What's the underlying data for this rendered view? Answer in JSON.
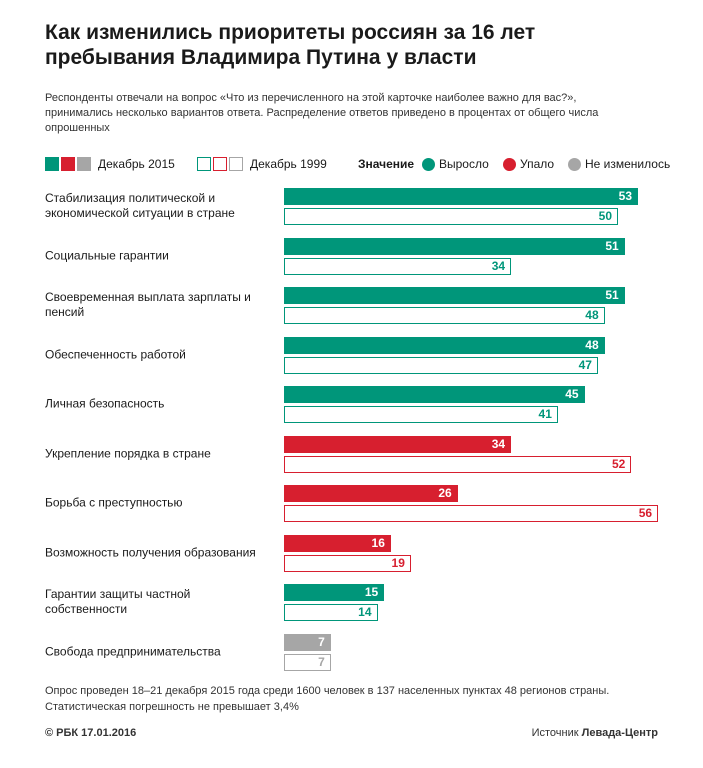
{
  "chart_data": {
    "type": "bar",
    "orientation": "horizontal",
    "title": "Как изменились приоритеты россиян за 16 лет пребывания Владимира Путина у власти",
    "subtitle": "Респонденты отвечали на вопрос «Что из перечисленного на этой карточке наиболее важно для вас?», принимались несколько вариантов ответа. Распределение ответов приведено в процентах от общего числа опрошенных",
    "categories": [
      "Стабилизация политической и экономической ситуации в стране",
      "Социальные гарантии",
      "Своевременная выплата зарплаты и пенсий",
      "Обеспеченность работой",
      "Личная безопасность",
      "Укрепление порядка в стране",
      "Борьба с преступностью",
      "Возможность получения образования",
      "Гарантии защиты частной собственности",
      "Свобода предпринимательства"
    ],
    "series": [
      {
        "name": "Декабрь 2015",
        "style": "filled",
        "values": [
          53,
          51,
          51,
          48,
          45,
          34,
          26,
          16,
          15,
          7
        ]
      },
      {
        "name": "Декабрь 1999",
        "style": "outline",
        "values": [
          50,
          34,
          48,
          47,
          41,
          52,
          56,
          19,
          14,
          7
        ]
      }
    ],
    "status_legend": {
      "title": "Значение",
      "items": [
        {
          "label": "Выросло",
          "color": "#00967a"
        },
        {
          "label": "Упало",
          "color": "#d71f2f"
        },
        {
          "label": "Не изменилось",
          "color": "#a6a6a6"
        }
      ]
    },
    "status": [
      0,
      0,
      0,
      0,
      0,
      1,
      1,
      1,
      0,
      2
    ],
    "footnote": "Опрос проведен 18–21 декабря 2015 года среди 1600 человек в 137 населенных пунктах 48 регионов страны. Статистическая погрешность не превышает 3,4%",
    "credit": "© РБК 17.01.2016",
    "source": {
      "label": "Источник",
      "name": "Левада-Центр"
    }
  }
}
